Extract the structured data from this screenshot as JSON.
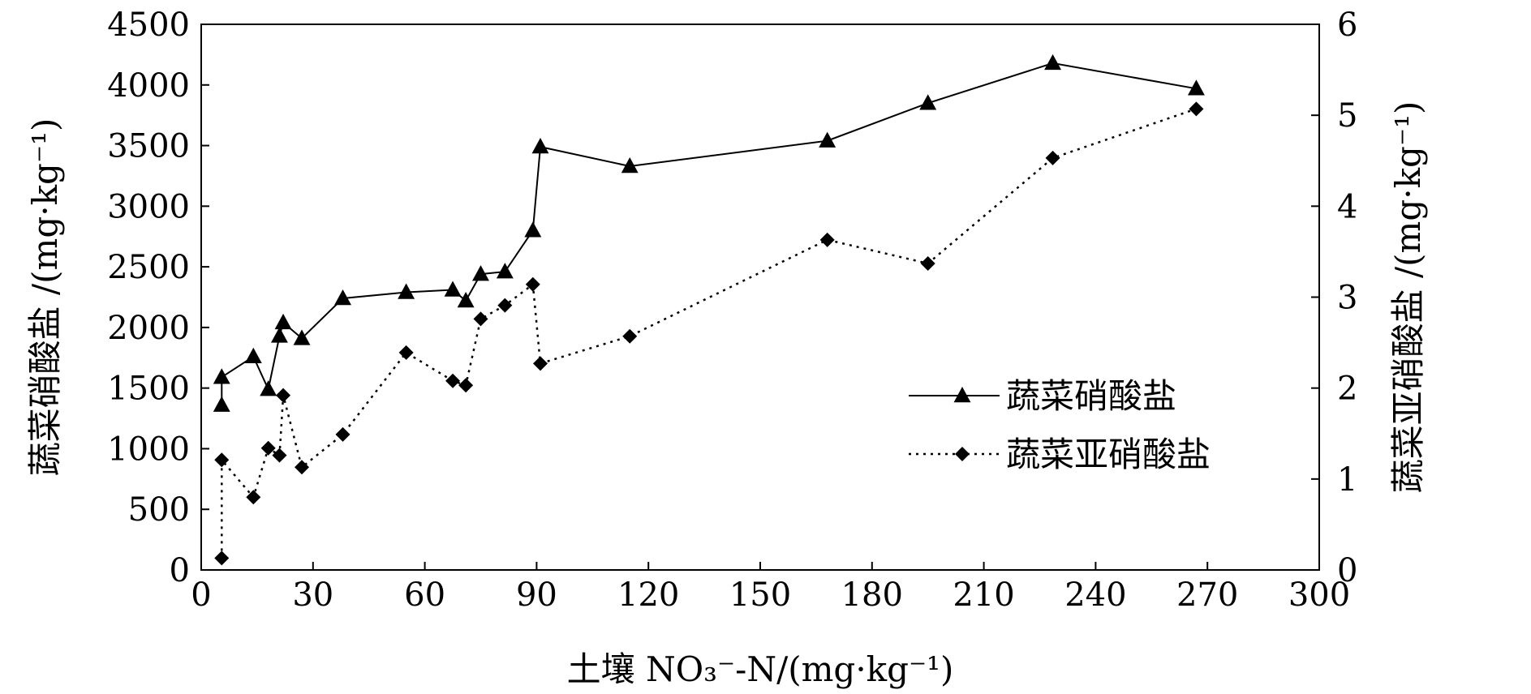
{
  "chart_data": {
    "type": "line",
    "title": "",
    "xlabel": "土壤 NO₃⁻-N/(mg·kg⁻¹)",
    "ylabel_left": "蔬菜硝酸盐 /(mg·kg⁻¹)",
    "ylabel_right": "蔬菜亚硝酸盐 /(mg·kg⁻¹)",
    "xlim": [
      0,
      300
    ],
    "ylim_left": [
      0,
      4500
    ],
    "ylim_right": [
      0,
      6
    ],
    "x_ticks": [
      0,
      30,
      60,
      90,
      120,
      150,
      180,
      210,
      240,
      270,
      300
    ],
    "y_left_ticks": [
      0,
      500,
      1000,
      1500,
      2000,
      2500,
      3000,
      3500,
      4000,
      4500
    ],
    "y_right_ticks": [
      0,
      1,
      2,
      3,
      4,
      5,
      6
    ],
    "grid": false,
    "legend_position": "center-right",
    "series": [
      {
        "name": "蔬菜硝酸盐",
        "axis": "left",
        "marker": "triangle",
        "line_style": "solid",
        "x": [
          5.5,
          5.5,
          14,
          18,
          21,
          22,
          27,
          38,
          55,
          67.5,
          71,
          75,
          81.5,
          89,
          91,
          115,
          168,
          195,
          228.5,
          267
        ],
        "y": [
          1360,
          1590,
          1760,
          1490,
          1930,
          2040,
          1910,
          2240,
          2290,
          2310,
          2220,
          2440,
          2460,
          2800,
          3490,
          3330,
          3540,
          3850,
          4180,
          3970
        ]
      },
      {
        "name": "蔬菜亚硝酸盐",
        "axis": "right",
        "marker": "diamond",
        "line_style": "dotted",
        "x": [
          5.5,
          5.5,
          14,
          18,
          21,
          22,
          27,
          38,
          55,
          67.5,
          71,
          75,
          81.5,
          89,
          91,
          115,
          168,
          195,
          228.5,
          267
        ],
        "y": [
          0.13,
          1.21,
          0.8,
          1.34,
          1.26,
          1.92,
          1.13,
          1.49,
          2.39,
          2.08,
          2.03,
          2.76,
          2.91,
          3.14,
          2.27,
          2.57,
          3.63,
          3.37,
          4.53,
          5.07
        ]
      }
    ]
  }
}
